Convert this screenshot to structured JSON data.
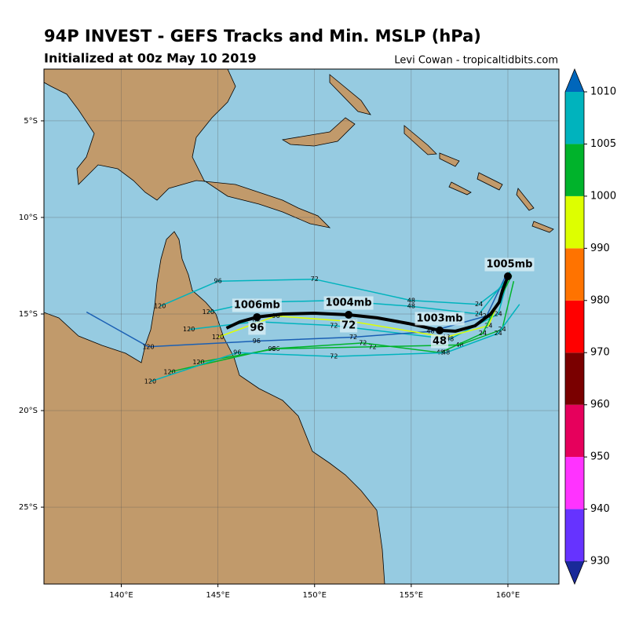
{
  "map": {
    "title": "94P INVEST - GEFS Tracks and Min. MSLP (hPa)",
    "subtitle": "Initialized at 00z May 10 2019",
    "credit": "Levi Cowan - tropicaltidbits.com",
    "lon_range": [
      136.0,
      162.64
    ],
    "lat_range": [
      -2.32,
      -28.98
    ],
    "lon_ticks": [
      {
        "value": 140,
        "label": "140°E"
      },
      {
        "value": 145,
        "label": "145°E"
      },
      {
        "value": 150,
        "label": "150°E"
      },
      {
        "value": 155,
        "label": "155°E"
      },
      {
        "value": 160,
        "label": "160°E"
      }
    ],
    "lat_ticks": [
      {
        "value": -5,
        "label": "5°S"
      },
      {
        "value": -10,
        "label": "10°S"
      },
      {
        "value": -15,
        "label": "15°S"
      },
      {
        "value": -20,
        "label": "20°S"
      },
      {
        "value": -25,
        "label": "25°S"
      }
    ],
    "colorbar": {
      "levels": [
        930,
        940,
        950,
        960,
        970,
        980,
        990,
        1000,
        1005,
        1010
      ],
      "colors": [
        "#6633ff",
        "#ff33ff",
        "#e6005c",
        "#7a0000",
        "#ff0000",
        "#ff7300",
        "#ddff00",
        "#00b32b",
        "#00b3bd"
      ],
      "extend_colors": [
        "#1a2a99",
        "#0066bb"
      ]
    },
    "members": [
      {
        "color": "#00b3bd",
        "lon": [
          160.1,
          159.5,
          157.0,
          151.0,
          147.0,
          143.5
        ],
        "lat": [
          -12.8,
          -15.0,
          -16.3,
          -15.6,
          -15.4,
          -15.8
        ],
        "hours": [
          null,
          24,
          48,
          72,
          96,
          120
        ]
      },
      {
        "color": "#00b32b",
        "lon": [
          160.3,
          159.7,
          157.5,
          153.0,
          148.0,
          144.0
        ],
        "lat": [
          -13.3,
          -15.8,
          -16.6,
          -16.7,
          -16.8,
          -17.5
        ],
        "hours": [
          null,
          24,
          48,
          72,
          96,
          120
        ]
      },
      {
        "color": "#00b3bd",
        "lon": [
          159.8,
          158.5,
          155.0,
          150.0,
          145.0,
          142.0
        ],
        "lat": [
          -13.5,
          -14.5,
          -14.3,
          -13.2,
          -13.3,
          -14.6
        ],
        "hours": [
          null,
          24,
          48,
          72,
          96,
          120
        ]
      },
      {
        "color": "#1a5fb4",
        "lon": [
          159.9,
          158.9,
          156.0,
          152.0,
          147.0,
          141.4,
          138.2
        ],
        "lat": [
          -13.0,
          -15.1,
          -15.9,
          -16.2,
          -16.4,
          -16.7,
          -14.9
        ],
        "hours": [
          null,
          24,
          48,
          72,
          96,
          120,
          null
        ]
      },
      {
        "color": "#ddff00",
        "lon": [
          160.0,
          159.0,
          156.8,
          152.0,
          148.0,
          145.0
        ],
        "lat": [
          -13.2,
          -15.6,
          -16.2,
          -15.4,
          -15.1,
          -16.2
        ],
        "hours": [
          null,
          24,
          48,
          72,
          96,
          120
        ]
      },
      {
        "color": "#00b32b",
        "lon": [
          160.2,
          158.7,
          156.5,
          152.5,
          147.8,
          142.5
        ],
        "lat": [
          -13.0,
          -16.0,
          -17.0,
          -16.5,
          -16.8,
          -18.0
        ],
        "hours": [
          null,
          24,
          48,
          72,
          96,
          120
        ]
      },
      {
        "color": "#00b3bd",
        "lon": [
          160.6,
          159.5,
          156.8,
          151.0,
          146.0,
          141.5
        ],
        "lat": [
          -14.5,
          -16.0,
          -17.0,
          -17.2,
          -17.0,
          -18.5
        ],
        "hours": [
          null,
          24,
          48,
          72,
          96,
          120
        ]
      },
      {
        "color": "#00b3bd",
        "lon": [
          160.0,
          158.5,
          155.0,
          151.0,
          146.8,
          144.5
        ],
        "lat": [
          -13.1,
          -15.0,
          -14.6,
          -14.3,
          -14.4,
          -14.9
        ],
        "hours": [
          null,
          24,
          48,
          72,
          96,
          120
        ]
      }
    ],
    "mean_track": {
      "color": "#000000",
      "lon": [
        160.0,
        159.72,
        159.55,
        159.11,
        158.3,
        157.28,
        156.47,
        154.85,
        153.23,
        151.76,
        149.98,
        148.36,
        147.02,
        146.13,
        145.44
      ],
      "lat": [
        -13.05,
        -13.78,
        -14.39,
        -15.0,
        -15.61,
        -15.89,
        -15.85,
        -15.49,
        -15.2,
        -15.04,
        -14.96,
        -15.0,
        -15.16,
        -15.41,
        -15.73
      ],
      "pressure_labels": [
        "1005mb",
        null,
        null,
        null,
        null,
        null,
        "1003mb",
        null,
        null,
        "1004mb",
        null,
        null,
        "1006mb",
        null,
        null
      ],
      "hour_labels": [
        null,
        null,
        null,
        null,
        null,
        null,
        "48",
        null,
        null,
        "72",
        null,
        null,
        "96",
        null,
        null
      ]
    }
  }
}
